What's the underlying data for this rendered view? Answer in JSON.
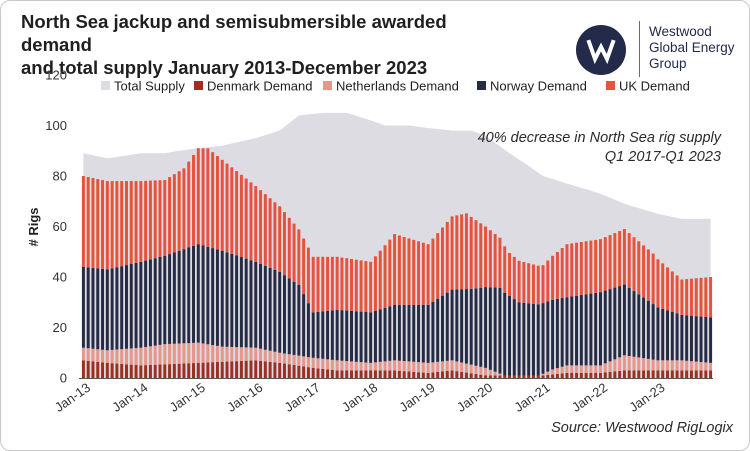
{
  "header": {
    "title_line1": "North Sea jackup and semisubmersible awarded demand",
    "title_line2": "and total supply January 2013-December 2023"
  },
  "logo": {
    "icon": "westwood-w-icon",
    "line1": "Westwood",
    "line2": "Global Energy",
    "line3": "Group"
  },
  "annotation": {
    "line1": "40% decrease in North Sea rig supply",
    "line2": "Q1 2017-Q1 2023"
  },
  "source": "Source: Westwood RigLogix",
  "colors": {
    "supply": "#dcdce2",
    "denmark": "#9b3022",
    "netherlands": "#e8958a",
    "norway": "#262b45",
    "uk": "#e8523c"
  },
  "chart_data": {
    "type": "bar",
    "stacked": true,
    "ylabel": "# Rigs",
    "ylim": [
      0,
      120
    ],
    "yticks": [
      0,
      20,
      40,
      60,
      80,
      100,
      120
    ],
    "grid": false,
    "legend_position": "top",
    "x_start": "Jan-13",
    "x_end": "Dec-23",
    "x_tick_labels": [
      "Jan-13",
      "Jan-14",
      "Jan-15",
      "Jan-16",
      "Jan-17",
      "Jan-18",
      "Jan-19",
      "Jan-20",
      "Jan-21",
      "Jan-22",
      "Jan-23"
    ],
    "series": [
      {
        "name": "Total Supply",
        "type": "area",
        "color": "#dcdce2",
        "anchors": [
          [
            "2013-01",
            89
          ],
          [
            "2013-06",
            87
          ],
          [
            "2014-01",
            89
          ],
          [
            "2014-06",
            89
          ],
          [
            "2014-09",
            90
          ],
          [
            "2015-01",
            91
          ],
          [
            "2015-06",
            92
          ],
          [
            "2016-01",
            95
          ],
          [
            "2016-06",
            98
          ],
          [
            "2016-10",
            104
          ],
          [
            "2017-03",
            105
          ],
          [
            "2017-08",
            105
          ],
          [
            "2018-01",
            102
          ],
          [
            "2018-04",
            100
          ],
          [
            "2018-09",
            100
          ],
          [
            "2019-01",
            99
          ],
          [
            "2019-06",
            98
          ],
          [
            "2019-10",
            98
          ],
          [
            "2020-01",
            96
          ],
          [
            "2020-06",
            89
          ],
          [
            "2020-10",
            84
          ],
          [
            "2021-01",
            80
          ],
          [
            "2021-06",
            77
          ],
          [
            "2022-01",
            73
          ],
          [
            "2022-06",
            69
          ],
          [
            "2023-01",
            65
          ],
          [
            "2023-06",
            63
          ],
          [
            "2023-12",
            63
          ]
        ]
      },
      {
        "name": "Denmark Demand",
        "color": "#9b3022",
        "anchors": [
          [
            "2013-01",
            7
          ],
          [
            "2013-06",
            6
          ],
          [
            "2014-01",
            5
          ],
          [
            "2015-01",
            6
          ],
          [
            "2016-01",
            7
          ],
          [
            "2016-06",
            6
          ],
          [
            "2017-01",
            4
          ],
          [
            "2017-06",
            3
          ],
          [
            "2018-01",
            3
          ],
          [
            "2018-06",
            3
          ],
          [
            "2019-01",
            2
          ],
          [
            "2019-06",
            3
          ],
          [
            "2020-01",
            1
          ],
          [
            "2020-06",
            1
          ],
          [
            "2021-01",
            1
          ],
          [
            "2021-06",
            2
          ],
          [
            "2022-01",
            2
          ],
          [
            "2022-06",
            3
          ],
          [
            "2023-01",
            3
          ],
          [
            "2023-12",
            3
          ]
        ]
      },
      {
        "name": "Netherlands Demand",
        "color": "#e8958a",
        "anchors": [
          [
            "2013-01",
            5
          ],
          [
            "2013-06",
            5
          ],
          [
            "2014-01",
            7
          ],
          [
            "2014-06",
            8
          ],
          [
            "2015-01",
            8
          ],
          [
            "2015-06",
            6
          ],
          [
            "2016-01",
            5
          ],
          [
            "2016-06",
            4
          ],
          [
            "2017-01",
            4
          ],
          [
            "2017-06",
            4
          ],
          [
            "2018-01",
            3
          ],
          [
            "2018-06",
            4
          ],
          [
            "2019-01",
            4
          ],
          [
            "2019-06",
            4
          ],
          [
            "2020-01",
            3
          ],
          [
            "2020-05",
            0
          ],
          [
            "2020-12",
            0
          ],
          [
            "2021-03",
            2
          ],
          [
            "2021-06",
            3
          ],
          [
            "2022-01",
            3
          ],
          [
            "2022-06",
            6
          ],
          [
            "2023-01",
            4
          ],
          [
            "2023-06",
            4
          ],
          [
            "2023-12",
            3
          ]
        ]
      },
      {
        "name": "Norway Demand",
        "color": "#262b45",
        "anchors": [
          [
            "2013-01",
            32
          ],
          [
            "2013-06",
            32
          ],
          [
            "2014-01",
            34
          ],
          [
            "2014-06",
            35
          ],
          [
            "2015-01",
            39
          ],
          [
            "2015-06",
            38
          ],
          [
            "2016-01",
            34
          ],
          [
            "2016-06",
            32
          ],
          [
            "2016-10",
            28
          ],
          [
            "2017-01",
            18
          ],
          [
            "2017-06",
            20
          ],
          [
            "2018-01",
            20
          ],
          [
            "2018-06",
            22
          ],
          [
            "2019-01",
            23
          ],
          [
            "2019-06",
            28
          ],
          [
            "2019-10",
            30
          ],
          [
            "2020-01",
            32
          ],
          [
            "2020-04",
            34
          ],
          [
            "2020-08",
            29
          ],
          [
            "2021-01",
            28
          ],
          [
            "2021-06",
            27
          ],
          [
            "2022-01",
            29
          ],
          [
            "2022-06",
            28
          ],
          [
            "2023-01",
            21
          ],
          [
            "2023-06",
            18
          ],
          [
            "2023-12",
            18
          ]
        ]
      },
      {
        "name": "UK Demand",
        "color": "#e8523c",
        "anchors": [
          [
            "2013-01",
            36
          ],
          [
            "2013-06",
            35
          ],
          [
            "2014-01",
            32
          ],
          [
            "2014-06",
            30
          ],
          [
            "2014-10",
            32
          ],
          [
            "2015-01",
            38
          ],
          [
            "2015-03",
            39
          ],
          [
            "2015-06",
            36
          ],
          [
            "2016-01",
            30
          ],
          [
            "2016-06",
            26
          ],
          [
            "2016-10",
            22
          ],
          [
            "2017-01",
            22
          ],
          [
            "2017-06",
            21
          ],
          [
            "2018-01",
            20
          ],
          [
            "2018-06",
            28
          ],
          [
            "2019-01",
            24
          ],
          [
            "2019-06",
            29
          ],
          [
            "2019-09",
            30
          ],
          [
            "2020-01",
            24
          ],
          [
            "2020-06",
            17
          ],
          [
            "2021-01",
            15
          ],
          [
            "2021-06",
            21
          ],
          [
            "2022-01",
            21
          ],
          [
            "2022-06",
            22
          ],
          [
            "2022-12",
            20
          ],
          [
            "2023-06",
            14
          ],
          [
            "2023-12",
            16
          ]
        ]
      }
    ]
  }
}
